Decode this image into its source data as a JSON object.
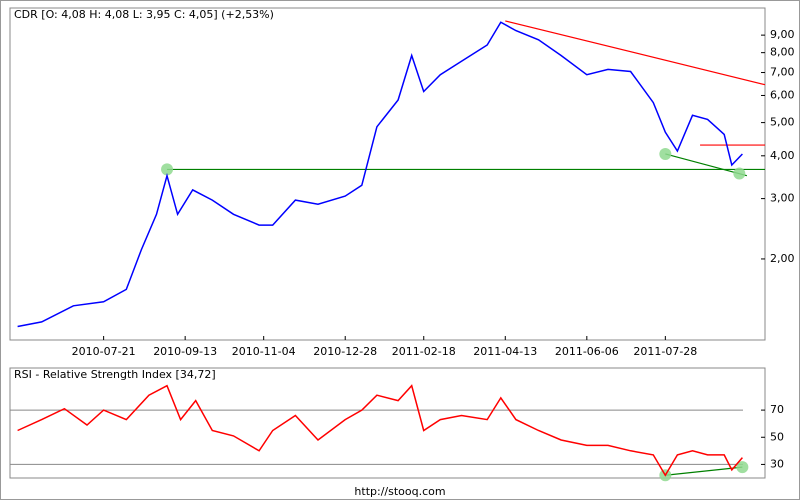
{
  "chart_data": [
    {
      "type": "line",
      "title": "CDR [O: 4,08  H: 4,08  L: 3,95  C: 4,05] (+2,53%)",
      "color": "#0000ff",
      "log_y": true,
      "xlim": [
        "2010-05-20",
        "2011-10-02"
      ],
      "xticks": [
        "2010-07-21",
        "2010-09-13",
        "2010-11-04",
        "2010-12-28",
        "2011-02-18",
        "2011-04-13",
        "2011-06-06",
        "2011-07-28"
      ],
      "ylim": [
        1.16,
        10.8
      ],
      "yticks": [
        {
          "value": 2,
          "label": "2,00"
        },
        {
          "value": 3,
          "label": "3,00"
        },
        {
          "value": 4,
          "label": "4,00"
        },
        {
          "value": 5,
          "label": "5,00"
        },
        {
          "value": 6,
          "label": "6,00"
        },
        {
          "value": 7,
          "label": "7,00"
        },
        {
          "value": 8,
          "label": "8,00"
        },
        {
          "value": 9,
          "label": "9,00"
        }
      ],
      "x": [
        "2010-05-25",
        "2010-06-10",
        "2010-07-01",
        "2010-07-21",
        "2010-08-05",
        "2010-08-15",
        "2010-08-25",
        "2010-09-01",
        "2010-09-08",
        "2010-09-18",
        "2010-10-01",
        "2010-10-15",
        "2010-11-01",
        "2010-11-10",
        "2010-11-25",
        "2010-12-10",
        "2010-12-28",
        "2011-01-08",
        "2011-01-18",
        "2011-02-01",
        "2011-02-10",
        "2011-02-18",
        "2011-03-01",
        "2011-03-15",
        "2011-04-01",
        "2011-04-10",
        "2011-04-20",
        "2011-05-05",
        "2011-05-20",
        "2011-06-06",
        "2011-06-20",
        "2011-07-05",
        "2011-07-20",
        "2011-07-28",
        "2011-08-05",
        "2011-08-15",
        "2011-08-25",
        "2011-09-05",
        "2011-09-10",
        "2011-09-17"
      ],
      "values": [
        1.27,
        1.31,
        1.46,
        1.5,
        1.63,
        2.13,
        2.7,
        3.5,
        2.7,
        3.18,
        2.97,
        2.7,
        2.51,
        2.51,
        2.97,
        2.89,
        3.05,
        3.28,
        4.86,
        5.82,
        7.85,
        6.16,
        6.9,
        7.55,
        8.42,
        9.82,
        9.28,
        8.72,
        7.85,
        6.9,
        7.15,
        7.05,
        5.72,
        4.69,
        4.13,
        5.25,
        5.11,
        4.62,
        3.76,
        4.05
      ],
      "lines": [
        {
          "color": "#008000",
          "x": [
            "2010-09-01",
            "2011-10-02"
          ],
          "y": [
            3.65,
            3.65
          ]
        },
        {
          "color": "#008000",
          "x": [
            "2011-07-28",
            "2011-09-20"
          ],
          "y": [
            4.05,
            3.5
          ]
        },
        {
          "color": "#ff0000",
          "x": [
            "2011-04-13",
            "2011-10-02"
          ],
          "y": [
            9.9,
            6.45
          ]
        },
        {
          "color": "#ff0000",
          "x": [
            "2011-08-20",
            "2011-10-02"
          ],
          "y": [
            4.3,
            4.3
          ]
        }
      ],
      "markers": [
        {
          "x": "2010-09-01",
          "y": 3.65
        },
        {
          "x": "2011-07-28",
          "y": 4.05
        },
        {
          "x": "2011-09-15",
          "y": 3.55
        }
      ],
      "marker_color": "#8fd98f"
    },
    {
      "type": "line",
      "title": "RSI - Relative Strength Index [34,72]",
      "color": "#ff0000",
      "log_y": false,
      "xlim": [
        "2010-05-20",
        "2011-10-02"
      ],
      "ylim": [
        20,
        101
      ],
      "yticks": [
        30,
        50,
        70
      ],
      "hlines": [
        70,
        30
      ],
      "x": [
        "2010-05-25",
        "2010-06-10",
        "2010-06-25",
        "2010-07-10",
        "2010-07-21",
        "2010-08-05",
        "2010-08-20",
        "2010-09-01",
        "2010-09-10",
        "2010-09-20",
        "2010-10-01",
        "2010-10-15",
        "2010-11-01",
        "2010-11-10",
        "2010-11-25",
        "2010-12-10",
        "2010-12-28",
        "2011-01-08",
        "2011-01-18",
        "2011-02-01",
        "2011-02-10",
        "2011-02-18",
        "2011-03-01",
        "2011-03-15",
        "2011-04-01",
        "2011-04-10",
        "2011-04-20",
        "2011-05-05",
        "2011-05-20",
        "2011-06-06",
        "2011-06-20",
        "2011-07-05",
        "2011-07-20",
        "2011-07-28",
        "2011-08-05",
        "2011-08-15",
        "2011-08-25",
        "2011-09-05",
        "2011-09-10",
        "2011-09-17"
      ],
      "values": [
        55,
        63,
        71,
        59,
        70,
        63,
        81,
        88,
        63,
        77,
        55,
        51,
        40,
        55,
        66,
        48,
        63,
        70,
        81,
        77,
        88,
        55,
        63,
        66,
        63,
        79,
        63,
        55,
        48,
        44,
        44,
        40,
        37,
        22,
        37,
        40,
        37,
        37,
        26,
        35
      ],
      "lines": [
        {
          "color": "#008000",
          "x": [
            "2011-07-28",
            "2011-09-17"
          ],
          "y": [
            22,
            28
          ]
        }
      ],
      "markers": [
        {
          "x": "2011-07-28",
          "y": 22
        },
        {
          "x": "2011-09-17",
          "y": 28
        }
      ],
      "marker_color": "#8fd98f"
    }
  ],
  "footer": "http://stooq.com"
}
